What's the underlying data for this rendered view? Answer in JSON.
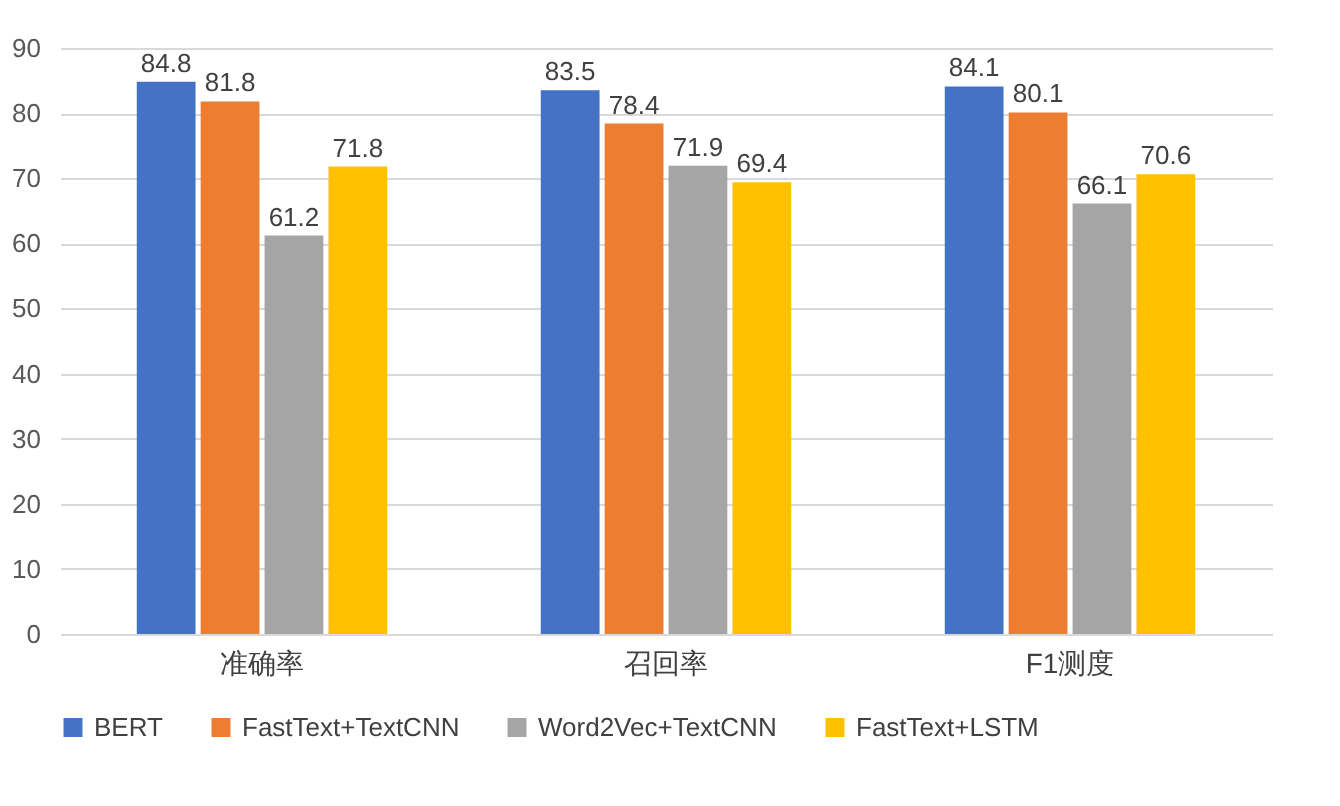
{
  "chart_data": {
    "type": "bar",
    "categories": [
      "准确率",
      "召回率",
      "F1测度"
    ],
    "series": [
      {
        "name": "BERT",
        "color": "#4472c4",
        "values": [
          84.8,
          83.5,
          84.1
        ]
      },
      {
        "name": "FastText+TextCNN",
        "color": "#ed7d31",
        "values": [
          81.8,
          78.4,
          80.1
        ]
      },
      {
        "name": "Word2Vec+TextCNN",
        "color": "#a5a5a5",
        "values": [
          61.2,
          71.9,
          66.1
        ]
      },
      {
        "name": "FastText+LSTM",
        "color": "#ffc000",
        "values": [
          71.8,
          69.4,
          70.6
        ]
      }
    ],
    "ylim": [
      0,
      90
    ],
    "yticks": [
      0,
      10,
      20,
      30,
      40,
      50,
      60,
      70,
      80,
      90
    ],
    "grid": "y",
    "legend": "bottom",
    "data_labels": true
  }
}
